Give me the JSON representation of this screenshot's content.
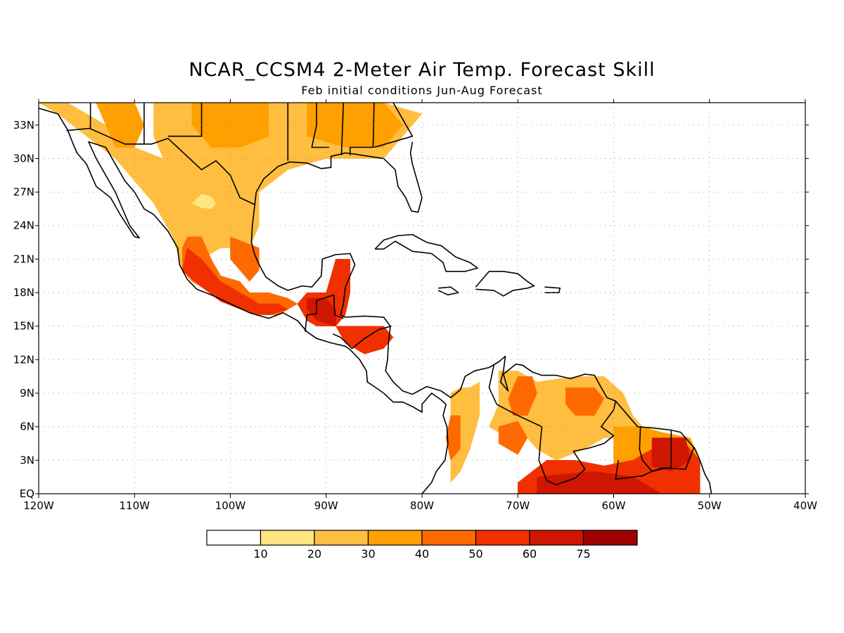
{
  "title": "NCAR_CCSM4 2-Meter Air Temp. Forecast Skill",
  "subtitle": "Feb initial conditions  Jun-Aug Forecast",
  "map": {
    "lon_range": [
      -120,
      -40
    ],
    "lat_range": [
      0,
      35
    ],
    "lon_ticks": [
      {
        "value": -120,
        "label": "120W"
      },
      {
        "value": -110,
        "label": "110W"
      },
      {
        "value": -100,
        "label": "100W"
      },
      {
        "value": -90,
        "label": "90W"
      },
      {
        "value": -80,
        "label": "80W"
      },
      {
        "value": -70,
        "label": "70W"
      },
      {
        "value": -60,
        "label": "60W"
      },
      {
        "value": -50,
        "label": "50W"
      },
      {
        "value": -40,
        "label": "40W"
      }
    ],
    "lat_ticks": [
      {
        "value": 0,
        "label": "EQ"
      },
      {
        "value": 3,
        "label": "3N"
      },
      {
        "value": 6,
        "label": "6N"
      },
      {
        "value": 9,
        "label": "9N"
      },
      {
        "value": 12,
        "label": "12N"
      },
      {
        "value": 15,
        "label": "15N"
      },
      {
        "value": 18,
        "label": "18N"
      },
      {
        "value": 21,
        "label": "21N"
      },
      {
        "value": 24,
        "label": "24N"
      },
      {
        "value": 27,
        "label": "27N"
      },
      {
        "value": 30,
        "label": "30N"
      },
      {
        "value": 33,
        "label": "33N"
      }
    ],
    "grid": true
  },
  "colorbar": {
    "colors": [
      "#ffffff",
      "#ffe680",
      "#ffbe40",
      "#ffa000",
      "#ff6a00",
      "#f03000",
      "#d01500",
      "#a00000"
    ],
    "labels": [
      "10",
      "20",
      "30",
      "40",
      "50",
      "60",
      "75"
    ]
  },
  "chart_data": {
    "type": "heatmap",
    "title": "NCAR_CCSM4 2-Meter Air Temp. Forecast Skill",
    "subtitle": "Feb initial conditions  Jun-Aug Forecast",
    "xlabel": "",
    "ylabel": "",
    "x_range": [
      -120,
      -40
    ],
    "y_range": [
      0,
      35
    ],
    "legend_levels": [
      10,
      20,
      30,
      40,
      50,
      60,
      75
    ],
    "regions": [
      {
        "name": "",
        "level": 20,
        "poly": [
          [
            -120,
            35
          ],
          [
            -117,
            35
          ],
          [
            -113,
            33
          ],
          [
            -110,
            31
          ],
          [
            -107,
            30
          ],
          [
            -106,
            28
          ],
          [
            -104,
            26
          ],
          [
            -103,
            24
          ],
          [
            -101,
            22
          ],
          [
            -105,
            20
          ],
          [
            -106,
            23
          ],
          [
            -108,
            26
          ],
          [
            -110,
            28
          ],
          [
            -112,
            30
          ],
          [
            -115,
            32
          ],
          [
            -118,
            34
          ],
          [
            -120,
            35
          ]
        ]
      },
      {
        "name": "",
        "level": 20,
        "poly": [
          [
            -108,
            35
          ],
          [
            -90,
            35
          ],
          [
            -84,
            35
          ],
          [
            -80,
            34
          ],
          [
            -82,
            32
          ],
          [
            -84,
            30
          ],
          [
            -90,
            30
          ],
          [
            -94,
            29
          ],
          [
            -97,
            27
          ],
          [
            -97,
            24
          ],
          [
            -98,
            22
          ],
          [
            -101,
            22
          ],
          [
            -103,
            24
          ],
          [
            -104,
            26
          ],
          [
            -106,
            28
          ],
          [
            -107,
            30
          ],
          [
            -108,
            32
          ]
        ]
      },
      {
        "name": "",
        "level": 30,
        "poly": [
          [
            -114,
            35
          ],
          [
            -110,
            35
          ],
          [
            -109,
            33
          ],
          [
            -110,
            31
          ],
          [
            -112,
            31
          ],
          [
            -113,
            33
          ]
        ]
      },
      {
        "name": "",
        "level": 30,
        "poly": [
          [
            -104,
            35
          ],
          [
            -96,
            35
          ],
          [
            -96,
            32
          ],
          [
            -99,
            31
          ],
          [
            -102,
            31
          ],
          [
            -104,
            33
          ]
        ]
      },
      {
        "name": "",
        "level": 30,
        "poly": [
          [
            -92,
            35
          ],
          [
            -84,
            35
          ],
          [
            -82,
            33
          ],
          [
            -84,
            31
          ],
          [
            -88,
            31
          ],
          [
            -92,
            32
          ]
        ]
      },
      {
        "name": "",
        "level": 10,
        "poly": [
          [
            -104,
            26
          ],
          [
            -103,
            25.6
          ],
          [
            -102,
            25.5
          ],
          [
            -101.5,
            26
          ],
          [
            -102,
            26.6
          ],
          [
            -103,
            26.8
          ]
        ]
      },
      {
        "name": "",
        "level": 40,
        "poly": [
          [
            -104.5,
            23
          ],
          [
            -103,
            23
          ],
          [
            -102,
            21
          ],
          [
            -101,
            19.5
          ],
          [
            -99,
            19
          ],
          [
            -98,
            18
          ],
          [
            -96,
            18
          ],
          [
            -94,
            17.5
          ],
          [
            -93,
            17
          ],
          [
            -95,
            16
          ],
          [
            -97,
            16
          ],
          [
            -100,
            17
          ],
          [
            -102,
            18
          ],
          [
            -104,
            19
          ],
          [
            -105,
            20
          ],
          [
            -105,
            22
          ]
        ]
      },
      {
        "name": "",
        "level": 50,
        "poly": [
          [
            -104.5,
            22
          ],
          [
            -103,
            21
          ],
          [
            -101,
            19
          ],
          [
            -99,
            18
          ],
          [
            -97,
            17
          ],
          [
            -95,
            17
          ],
          [
            -94,
            16.5
          ],
          [
            -96,
            16
          ],
          [
            -98,
            16.2
          ],
          [
            -101,
            17.2
          ],
          [
            -103,
            18.5
          ],
          [
            -105,
            20
          ]
        ]
      },
      {
        "name": "",
        "level": 40,
        "poly": [
          [
            -100,
            23
          ],
          [
            -97,
            22
          ],
          [
            -97,
            20
          ],
          [
            -98,
            19
          ],
          [
            -99,
            20
          ],
          [
            -100,
            21
          ]
        ]
      },
      {
        "name": "",
        "level": 50,
        "poly": [
          [
            -92,
            18
          ],
          [
            -90,
            18
          ],
          [
            -89,
            21
          ],
          [
            -87.5,
            21
          ],
          [
            -87.5,
            18
          ],
          [
            -88,
            16
          ],
          [
            -89,
            15
          ],
          [
            -91,
            15
          ],
          [
            -92,
            15.5
          ],
          [
            -93,
            17
          ]
        ]
      },
      {
        "name": "",
        "level": 60,
        "poly": [
          [
            -92,
            17.5
          ],
          [
            -90,
            17.5
          ],
          [
            -89,
            16.5
          ],
          [
            -89,
            15
          ],
          [
            -91,
            15.5
          ],
          [
            -92,
            16.5
          ]
        ]
      },
      {
        "name": "",
        "level": 50,
        "poly": [
          [
            -89,
            15
          ],
          [
            -84,
            15
          ],
          [
            -83,
            14
          ],
          [
            -84,
            13
          ],
          [
            -86,
            12.5
          ],
          [
            -88,
            13.5
          ]
        ]
      },
      {
        "name": "",
        "level": 20,
        "poly": [
          [
            -77,
            9
          ],
          [
            -76,
            9.5
          ],
          [
            -75,
            9.5
          ],
          [
            -74,
            10
          ],
          [
            -74,
            7
          ],
          [
            -75,
            4
          ],
          [
            -76,
            2
          ],
          [
            -77,
            1
          ],
          [
            -77,
            3
          ],
          [
            -77.5,
            5
          ],
          [
            -77,
            7
          ]
        ]
      },
      {
        "name": "",
        "level": 40,
        "poly": [
          [
            -77,
            7
          ],
          [
            -76,
            7
          ],
          [
            -76,
            4
          ],
          [
            -77,
            3
          ],
          [
            -77.5,
            5
          ]
        ]
      },
      {
        "name": "",
        "level": 20,
        "poly": [
          [
            -72,
            11
          ],
          [
            -70,
            11
          ],
          [
            -68,
            10
          ],
          [
            -64,
            10.5
          ],
          [
            -61,
            10.5
          ],
          [
            -59,
            9
          ],
          [
            -58,
            7
          ],
          [
            -57,
            6
          ],
          [
            -59,
            5
          ],
          [
            -61,
            5
          ],
          [
            -63,
            4
          ],
          [
            -66,
            3
          ],
          [
            -68,
            4
          ],
          [
            -69,
            5
          ],
          [
            -71,
            5
          ],
          [
            -73,
            6
          ],
          [
            -72,
            8
          ]
        ]
      },
      {
        "name": "",
        "level": 40,
        "poly": [
          [
            -70,
            10.5
          ],
          [
            -68.5,
            10.5
          ],
          [
            -68,
            9
          ],
          [
            -69,
            7
          ],
          [
            -70.5,
            7
          ],
          [
            -71,
            8.5
          ]
        ]
      },
      {
        "name": "",
        "level": 40,
        "poly": [
          [
            -65,
            9.5
          ],
          [
            -62,
            9.5
          ],
          [
            -61,
            8.5
          ],
          [
            -62,
            7
          ],
          [
            -64,
            7
          ],
          [
            -65,
            8
          ]
        ]
      },
      {
        "name": "",
        "level": 40,
        "poly": [
          [
            -72,
            6
          ],
          [
            -70,
            6.5
          ],
          [
            -69,
            5
          ],
          [
            -70,
            3.5
          ],
          [
            -72,
            4.5
          ]
        ]
      },
      {
        "name": "",
        "level": 30,
        "poly": [
          [
            -60,
            6
          ],
          [
            -57,
            6
          ],
          [
            -55,
            5.5
          ],
          [
            -52,
            5
          ],
          [
            -51,
            3
          ],
          [
            -51,
            0
          ],
          [
            -56,
            0
          ],
          [
            -60,
            1
          ],
          [
            -63,
            2
          ],
          [
            -66,
            2
          ],
          [
            -68,
            1
          ],
          [
            -70,
            0
          ],
          [
            -66,
            0
          ],
          [
            -60,
            0
          ]
        ]
      },
      {
        "name": "",
        "level": 50,
        "poly": [
          [
            -70,
            1
          ],
          [
            -67,
            3
          ],
          [
            -64,
            3
          ],
          [
            -61,
            2.5
          ],
          [
            -58,
            3
          ],
          [
            -56,
            4
          ],
          [
            -55,
            5
          ],
          [
            -53,
            5
          ],
          [
            -51,
            3
          ],
          [
            -51,
            0
          ],
          [
            -70,
            0
          ]
        ]
      },
      {
        "name": "",
        "level": 60,
        "poly": [
          [
            -56,
            5
          ],
          [
            -52.5,
            5
          ],
          [
            -52,
            3
          ],
          [
            -54,
            2
          ],
          [
            -56,
            2.5
          ]
        ]
      },
      {
        "name": "",
        "level": 60,
        "poly": [
          [
            -68,
            1.5
          ],
          [
            -62,
            2
          ],
          [
            -58,
            1.5
          ],
          [
            -55,
            0
          ],
          [
            -68,
            0
          ]
        ]
      }
    ]
  }
}
